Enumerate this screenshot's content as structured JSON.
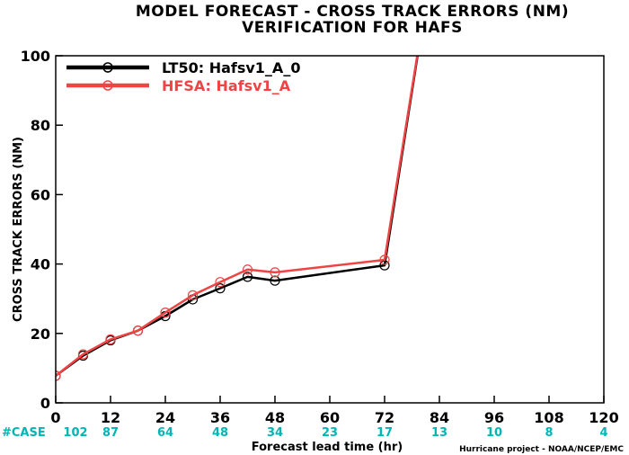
{
  "chart_data": {
    "type": "line",
    "title": "MODEL FORECAST - CROSS TRACK ERRORS (NM)",
    "subtitle": "VERIFICATION FOR HAFS",
    "xlabel": "Forecast lead time (hr)",
    "ylabel": "CROSS TRACK ERRORS (NM)",
    "xlim": [
      0,
      120
    ],
    "ylim": [
      0,
      100
    ],
    "x_ticks": [
      0,
      12,
      24,
      36,
      48,
      60,
      72,
      84,
      96,
      108,
      120
    ],
    "y_ticks": [
      0,
      20,
      40,
      60,
      80,
      100
    ],
    "grid": false,
    "legend_position": "top-left",
    "case_label": "#CASE",
    "case_counts": [
      {
        "x": 0,
        "count": "102"
      },
      {
        "x": 12,
        "count": "87"
      },
      {
        "x": 24,
        "count": "64"
      },
      {
        "x": 36,
        "count": "48"
      },
      {
        "x": 48,
        "count": "34"
      },
      {
        "x": 60,
        "count": "23"
      },
      {
        "x": 72,
        "count": "17"
      },
      {
        "x": 84,
        "count": "13"
      },
      {
        "x": 96,
        "count": "10"
      },
      {
        "x": 108,
        "count": "8"
      },
      {
        "x": 120,
        "count": "4"
      }
    ],
    "case_color": "#00b5b5",
    "series": [
      {
        "name": "LT50: Hafsv1_A_0",
        "color": "#000000",
        "x": [
          0,
          6,
          12,
          18,
          24,
          30,
          36,
          42,
          48,
          72,
          84
        ],
        "y": [
          7.8,
          13.6,
          18.0,
          20.8,
          25.0,
          29.8,
          33.0,
          36.3,
          35.2,
          39.6,
          140
        ]
      },
      {
        "name": "HFSA: Hafsv1_A",
        "color": "#ee4444",
        "x": [
          0,
          6,
          12,
          18,
          24,
          30,
          36,
          42,
          48,
          72,
          84
        ],
        "y": [
          7.8,
          14.0,
          18.3,
          20.8,
          26.0,
          31.0,
          34.8,
          38.4,
          37.6,
          41.2,
          140
        ]
      }
    ],
    "credit": "Hurricane project - NOAA/NCEP/EMC"
  }
}
